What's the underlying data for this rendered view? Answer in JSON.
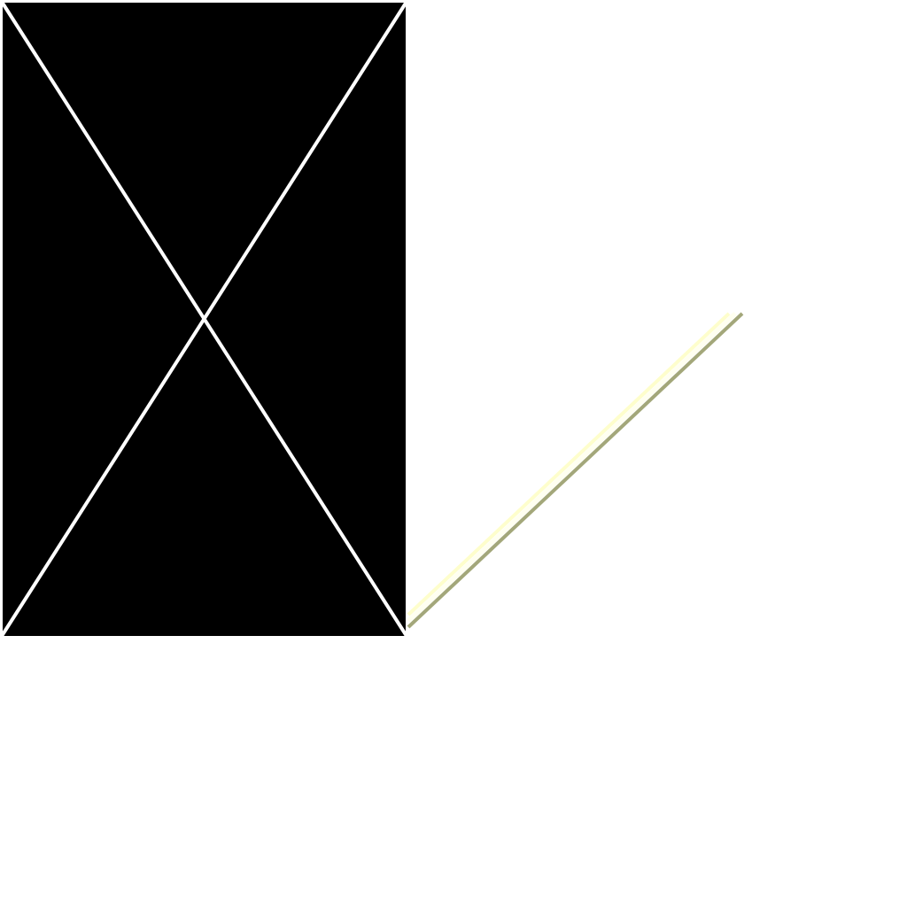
{
  "colors": {
    "background": "#ffffff",
    "panel_fill": "#000000",
    "panel_border": "#ffffff",
    "diagonal_stroke": "#ffffff",
    "beam_light": "#fefecc",
    "beam_dark": "#a3a77a",
    "beam_mid": "#fffff0"
  },
  "icons": {
    "panel": "crossed-rectangle-placeholder",
    "beam": "diagonal-line-stroke"
  }
}
